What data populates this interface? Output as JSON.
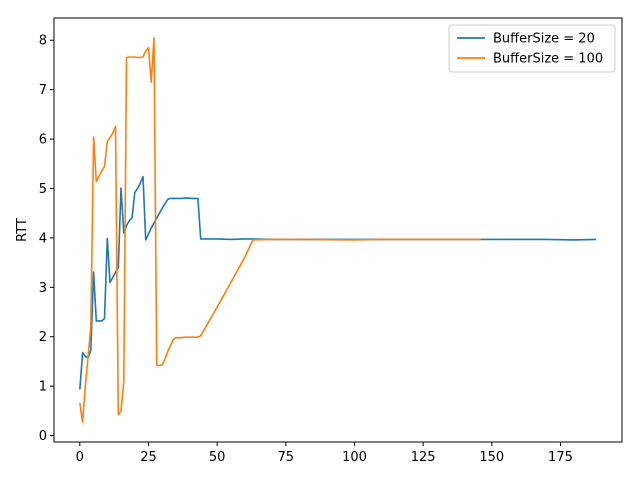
{
  "chart_data": {
    "type": "line",
    "title": "",
    "xlabel": "",
    "ylabel": "RTT",
    "xlim": [
      -9.4,
      197.4
    ],
    "ylim": [
      -0.13,
      8.45
    ],
    "xticks": [
      0,
      25,
      50,
      75,
      100,
      125,
      150,
      175
    ],
    "yticks": [
      0,
      1,
      2,
      3,
      4,
      5,
      6,
      7,
      8
    ],
    "grid": false,
    "legend_position": "top-right",
    "series": [
      {
        "name": "BufferSize = 20",
        "color": "#1f77b4",
        "x": [
          0,
          1,
          2,
          3,
          4,
          5,
          6,
          7,
          8,
          9,
          10,
          11,
          12,
          13,
          14,
          15,
          16,
          17,
          18,
          19,
          20,
          21,
          22,
          23,
          24,
          26,
          28,
          30,
          32,
          33,
          35,
          37,
          39,
          41,
          43,
          44,
          50,
          55,
          60,
          62,
          70,
          80,
          100,
          120,
          140,
          150,
          160,
          170,
          180,
          188
        ],
        "y": [
          0.93,
          1.68,
          1.6,
          1.58,
          1.72,
          3.31,
          2.32,
          2.32,
          2.32,
          2.37,
          3.99,
          3.1,
          3.2,
          3.3,
          3.4,
          5.01,
          4.1,
          4.25,
          4.35,
          4.4,
          4.92,
          5.0,
          5.1,
          5.24,
          3.96,
          4.2,
          4.4,
          4.6,
          4.78,
          4.8,
          4.8,
          4.8,
          4.81,
          4.8,
          4.8,
          3.98,
          3.98,
          3.97,
          3.98,
          3.98,
          3.97,
          3.97,
          3.97,
          3.97,
          3.97,
          3.97,
          3.97,
          3.97,
          3.96,
          3.97
        ]
      },
      {
        "name": "BufferSize = 100",
        "color": "#ff7f0e",
        "x": [
          0,
          1,
          2,
          3,
          4,
          5,
          6,
          7,
          8,
          9,
          10,
          11,
          12,
          13,
          14,
          15,
          16,
          17,
          18,
          19,
          20,
          21,
          22,
          23,
          24,
          25,
          26,
          27,
          28,
          29,
          30,
          31,
          32,
          33,
          34,
          35,
          36,
          37,
          38,
          39,
          40,
          41,
          42,
          43,
          44,
          50,
          55,
          60,
          63,
          70,
          80,
          100,
          110,
          120,
          130,
          140,
          146
        ],
        "y": [
          0.66,
          0.27,
          1.0,
          1.6,
          2.2,
          6.04,
          5.14,
          5.25,
          5.35,
          5.45,
          5.95,
          6.03,
          6.12,
          6.26,
          0.42,
          0.5,
          1.1,
          7.65,
          7.66,
          7.66,
          7.66,
          7.65,
          7.65,
          7.66,
          7.78,
          7.85,
          7.15,
          8.05,
          1.42,
          1.42,
          1.43,
          1.55,
          1.7,
          1.82,
          1.94,
          1.98,
          1.98,
          1.98,
          1.99,
          1.99,
          1.99,
          1.99,
          1.99,
          1.99,
          2.02,
          2.6,
          3.1,
          3.6,
          3.96,
          3.97,
          3.97,
          3.96,
          3.97,
          3.97,
          3.97,
          3.97,
          3.97
        ]
      }
    ]
  }
}
